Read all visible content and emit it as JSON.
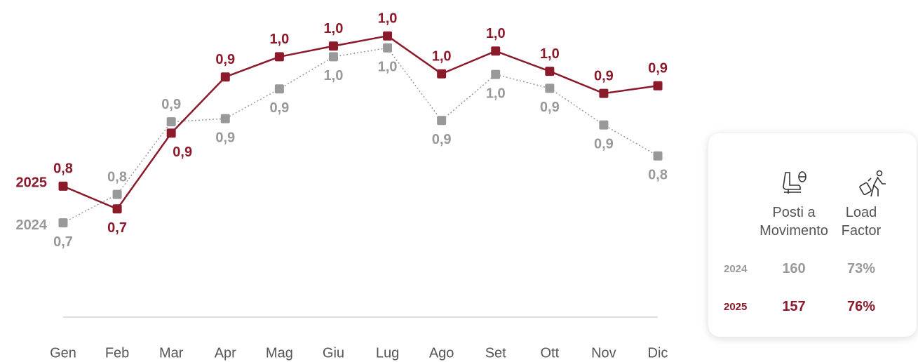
{
  "chart_data": {
    "type": "line",
    "categories": [
      "Gen",
      "Feb",
      "Mar",
      "Apr",
      "Mag",
      "Giu",
      "Lug",
      "Ago",
      "Set",
      "Ott",
      "Nov",
      "Dic"
    ],
    "series": [
      {
        "name": "2025",
        "color": "#8b1a2b",
        "line_style": "solid",
        "values": [
          0.774,
          0.738,
          0.858,
          0.947,
          0.979,
          0.996,
          1.012,
          0.952,
          0.988,
          0.956,
          0.921,
          0.933
        ],
        "value_labels": [
          "0,8",
          "0,7",
          "0,9",
          "0,9",
          "1,0",
          "1,0",
          "1,0",
          "1,0",
          "1,0",
          "1,0",
          "0,9",
          "0,9"
        ]
      },
      {
        "name": "2024",
        "color": "#999999",
        "line_style": "dotted",
        "values": [
          0.716,
          0.761,
          0.876,
          0.881,
          0.928,
          0.979,
          0.993,
          0.878,
          0.951,
          0.929,
          0.871,
          0.822
        ],
        "value_labels": [
          "0,7",
          "0,8",
          "0,9",
          "0,9",
          "0,9",
          "1,0",
          "1,0",
          "0,9",
          "1,0",
          "0,9",
          "0,9",
          "0,8"
        ]
      }
    ],
    "ylim": [
      0.6,
      1.06
    ]
  },
  "summary": {
    "columns": [
      "Posti a Movimento",
      "Load Factor"
    ],
    "rows": [
      {
        "label": "2024",
        "color": "#999999",
        "values": [
          "160",
          "73%"
        ]
      },
      {
        "label": "2025",
        "color": "#8b1a2b",
        "values": [
          "157",
          "76%"
        ]
      }
    ]
  }
}
